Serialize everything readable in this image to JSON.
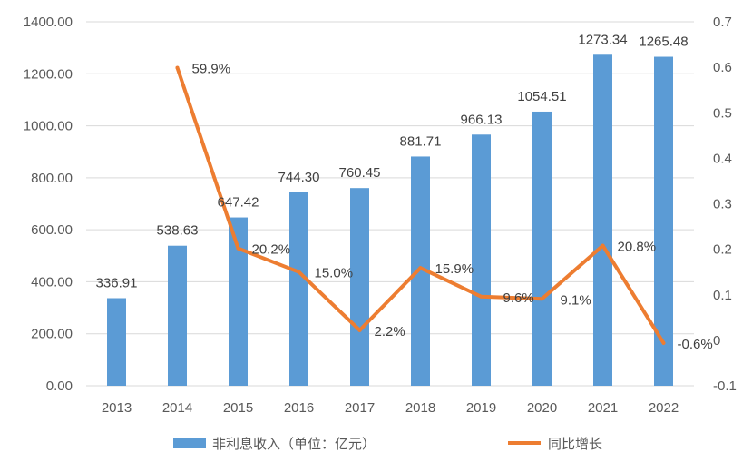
{
  "chart_data": {
    "type": "bar",
    "categories": [
      "2013",
      "2014",
      "2015",
      "2016",
      "2017",
      "2018",
      "2019",
      "2020",
      "2021",
      "2022"
    ],
    "series": [
      {
        "name": "非利息收入（单位：亿元）",
        "kind": "bar",
        "axis": "left",
        "color": "#5b9bd5",
        "values": [
          336.91,
          538.63,
          647.42,
          744.3,
          760.45,
          881.71,
          966.13,
          1054.51,
          1273.34,
          1265.48
        ],
        "labels": [
          "336.91",
          "538.63",
          "647.42",
          "744.30",
          "760.45",
          "881.71",
          "966.13",
          "1054.51",
          "1273.34",
          "1265.48"
        ]
      },
      {
        "name": "同比增长",
        "kind": "line",
        "axis": "right",
        "color": "#ed7d31",
        "values": [
          null,
          0.599,
          0.202,
          0.15,
          0.022,
          0.159,
          0.096,
          0.091,
          0.208,
          -0.006
        ],
        "labels": [
          null,
          "59.9%",
          "20.2%",
          "15.0%",
          "2.2%",
          "15.9%",
          "9.6%",
          "9.1%",
          "20.8%",
          "-0.6%"
        ]
      }
    ],
    "left_axis": {
      "ylim": [
        0,
        1400
      ],
      "ticks": [
        "0.00",
        "200.00",
        "400.00",
        "600.00",
        "800.00",
        "1000.00",
        "1200.00",
        "1400.00"
      ]
    },
    "right_axis": {
      "ylim": [
        -0.1,
        0.7
      ],
      "ticks": [
        "-0.1",
        "0",
        "0.1",
        "0.2",
        "0.3",
        "0.4",
        "0.5",
        "0.6",
        "0.7"
      ]
    },
    "grid": true,
    "legend_position": "bottom"
  }
}
